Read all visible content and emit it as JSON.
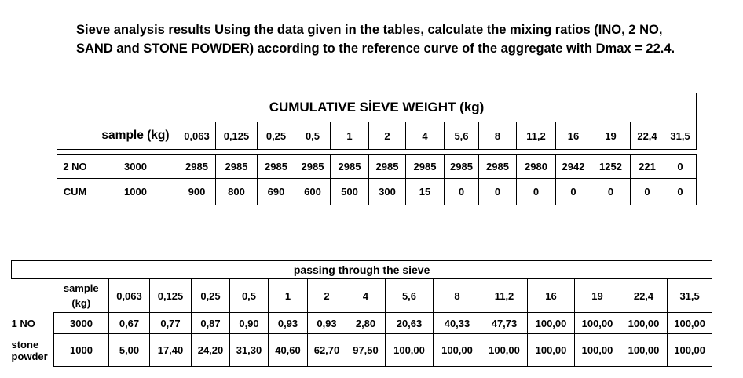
{
  "heading": "Sieve analysis results Using the data given in the tables, calculate the mixing ratios (INO, 2 NO, SAND and STONE POWDER) according to the reference curve of the aggregate with Dmax = 22.4.",
  "table1": {
    "title": "CUMULATIVE SİEVE WEIGHT (kg)",
    "header": [
      "sample (kg)",
      "0,063",
      "0,125",
      "0,25",
      "0,5",
      "1",
      "2",
      "4",
      "5,6",
      "8",
      "11,2",
      "16",
      "19",
      "22,4",
      "31,5"
    ],
    "rows": [
      [
        "2 NO",
        "3000",
        "2985",
        "2985",
        "2985",
        "2985",
        "2985",
        "2985",
        "2985",
        "2985",
        "2985",
        "2980",
        "2942",
        "1252",
        "221",
        "0"
      ],
      [
        "CUM",
        "1000",
        "900",
        "800",
        "690",
        "600",
        "500",
        "300",
        "15",
        "0",
        "0",
        "0",
        "0",
        "0",
        "0",
        "0"
      ]
    ]
  },
  "table2": {
    "title": "passing through the sieve",
    "header": [
      "sample (kg)",
      "0,063",
      "0,125",
      "0,25",
      "0,5",
      "1",
      "2",
      "4",
      "5,6",
      "8",
      "11,2",
      "16",
      "19",
      "22,4",
      "31,5"
    ],
    "rows": [
      [
        "1 NO",
        "3000",
        "0,67",
        "0,77",
        "0,87",
        "0,90",
        "0,93",
        "0,93",
        "2,80",
        "20,63",
        "40,33",
        "47,73",
        "100,00",
        "100,00",
        "100,00",
        "100,00"
      ],
      [
        "stone powder",
        "1000",
        "5,00",
        "17,40",
        "24,20",
        "31,30",
        "40,60",
        "62,70",
        "97,50",
        "100,00",
        "100,00",
        "100,00",
        "100,00",
        "100,00",
        "100,00",
        "100,00"
      ]
    ]
  }
}
